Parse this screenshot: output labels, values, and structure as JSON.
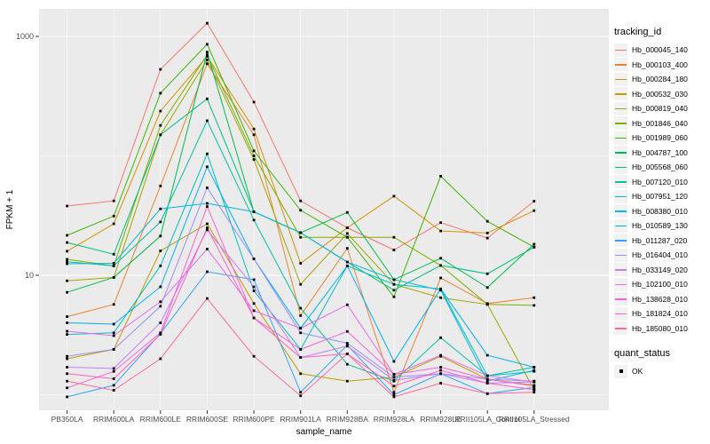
{
  "figure": {
    "background": "#FFFFFF",
    "panel_background": "#EBEBEB",
    "grid_color": "#FFFFFF",
    "tick_label_color": "#4D4D4D",
    "axis_title_color": "#000000",
    "point_color": "#000000"
  },
  "chart_data": {
    "type": "line",
    "title": "",
    "xlabel": "sample_name",
    "ylabel": "FPKM + 1",
    "y_scale": "log10",
    "ylim": [
      0.74,
      1700
    ],
    "y_major_ticks": [
      {
        "label": "10",
        "value": 10
      },
      {
        "label": "1000",
        "value": 1000
      }
    ],
    "y_minor_ticks": [
      1,
      100
    ],
    "grid": true,
    "legend_position": "right",
    "legend_title": "tracking_id",
    "categories": [
      "PB350LA",
      "RRIM600LA",
      "RRIM600LE",
      "RRIM600SE",
      "RRIM600PE",
      "RRIM901LA",
      "RRIM928BA",
      "RRIM928LA",
      "RRIM928LE",
      "RRII105LA_Control",
      "RRII105LA_Stressed"
    ],
    "series": [
      {
        "name": "Hb_000045_140",
        "color": "#F8766D",
        "values": [
          38,
          42,
          530,
          1290,
          282,
          42,
          25,
          16.3,
          27.6,
          20.5,
          41.7
        ]
      },
      {
        "name": "Hb_000103_400",
        "color": "#EA8331",
        "values": [
          4.5,
          5.7,
          56,
          590,
          150,
          4.6,
          16.8,
          1.05,
          9.5,
          5.8,
          6.5
        ]
      },
      {
        "name": "Hb_000284_180",
        "color": "#D89000",
        "values": [
          15.9,
          27,
          237,
          680,
          168,
          12.6,
          25,
          46,
          23.5,
          22.6,
          34.8
        ]
      },
      {
        "name": "Hb_000532_030",
        "color": "#C09B00",
        "values": [
          2.0,
          2.4,
          16,
          27,
          5.8,
          1.5,
          1.3,
          1.4,
          2.1,
          1.35,
          1.2
        ]
      },
      {
        "name": "Hb_000819_040",
        "color": "#A3A500",
        "values": [
          9.0,
          9.6,
          150,
          636,
          93,
          8.4,
          22.4,
          8.4,
          6.5,
          5.7,
          1.1
        ]
      },
      {
        "name": "Hb_001846_040",
        "color": "#7CAE00",
        "values": [
          13.6,
          12,
          180,
          700,
          100,
          20.8,
          20.8,
          20.8,
          12.1,
          5.7,
          5.6
        ]
      },
      {
        "name": "Hb_001989_060",
        "color": "#39B600",
        "values": [
          21.6,
          31.3,
          335,
          860,
          110,
          35,
          20.8,
          6.6,
          67.6,
          28.3,
          17.2
        ]
      },
      {
        "name": "Hb_004787_100",
        "color": "#00BB4E",
        "values": [
          7.2,
          9.6,
          21.3,
          738,
          34,
          22.7,
          33.6,
          9.2,
          13.9,
          7.9,
          18.2
        ]
      },
      {
        "name": "Hb_005568_060",
        "color": "#00BF7D",
        "values": [
          18.8,
          15,
          150,
          300,
          34,
          22.7,
          12.9,
          7.5,
          12.1,
          10.3,
          17.2
        ]
      },
      {
        "name": "Hb_007120_010",
        "color": "#00C1A3",
        "values": [
          13.0,
          12,
          28,
          197,
          29,
          5.3,
          1.8,
          1.3,
          3.0,
          1.44,
          1.7
        ]
      },
      {
        "name": "Hb_007951_120",
        "color": "#00BFC4",
        "values": [
          3.2,
          3.3,
          12,
          104,
          7.4,
          2.4,
          12.0,
          8.4,
          7.7,
          1.44,
          1.57
        ]
      },
      {
        "name": "Hb_008380_010",
        "color": "#00BAE0",
        "values": [
          12.5,
          12.6,
          36,
          40,
          34,
          22.7,
          12.9,
          9.2,
          7.5,
          1.3,
          1.6
        ]
      },
      {
        "name": "Hb_010589_130",
        "color": "#00B0F6",
        "values": [
          4.0,
          3.9,
          8,
          81,
          13.7,
          3.6,
          12.0,
          1.9,
          7.7,
          2.14,
          1.7
        ]
      },
      {
        "name": "Hb_011287_020",
        "color": "#35A2FF",
        "values": [
          0.96,
          1.2,
          3.25,
          10.7,
          9.2,
          1.05,
          2.6,
          1.0,
          1.5,
          1.02,
          1.15
        ]
      },
      {
        "name": "Hb_016404_010",
        "color": "#9590FF",
        "values": [
          2.1,
          2.4,
          5.5,
          54,
          13.7,
          3.3,
          2.7,
          1.4,
          1.5,
          1.35,
          1.3
        ]
      },
      {
        "name": "Hb_033149_020",
        "color": "#C77CFF",
        "values": [
          1.7,
          1.66,
          4,
          24,
          8,
          2.05,
          2.55,
          1.32,
          1.5,
          1.25,
          1.28
        ]
      },
      {
        "name": "Hb_102100_010",
        "color": "#E76BF3",
        "values": [
          3.4,
          3.12,
          6,
          16.6,
          5.05,
          3.6,
          5.66,
          1.48,
          2.14,
          1.44,
          1.28
        ]
      },
      {
        "name": "Hb_138628_010",
        "color": "#FA62DB",
        "values": [
          1.14,
          1.57,
          3.3,
          37.6,
          4.4,
          2.4,
          3.39,
          1.48,
          1.7,
          1.35,
          1.18
        ]
      },
      {
        "name": "Hb_181824_010",
        "color": "#FF62BC",
        "values": [
          1.5,
          1.36,
          3.2,
          25,
          4.4,
          2.05,
          2.2,
          1.18,
          1.6,
          1.25,
          1.1
        ]
      },
      {
        "name": "Hb_185080_010",
        "color": "#FF6A98",
        "values": [
          1.3,
          1.09,
          2.0,
          6.4,
          2.1,
          0.98,
          2.2,
          0.96,
          1.25,
          1.02,
          1.05
        ]
      }
    ],
    "legend2_title": "quant_status",
    "legend2_items": [
      {
        "label": "OK"
      }
    ]
  }
}
